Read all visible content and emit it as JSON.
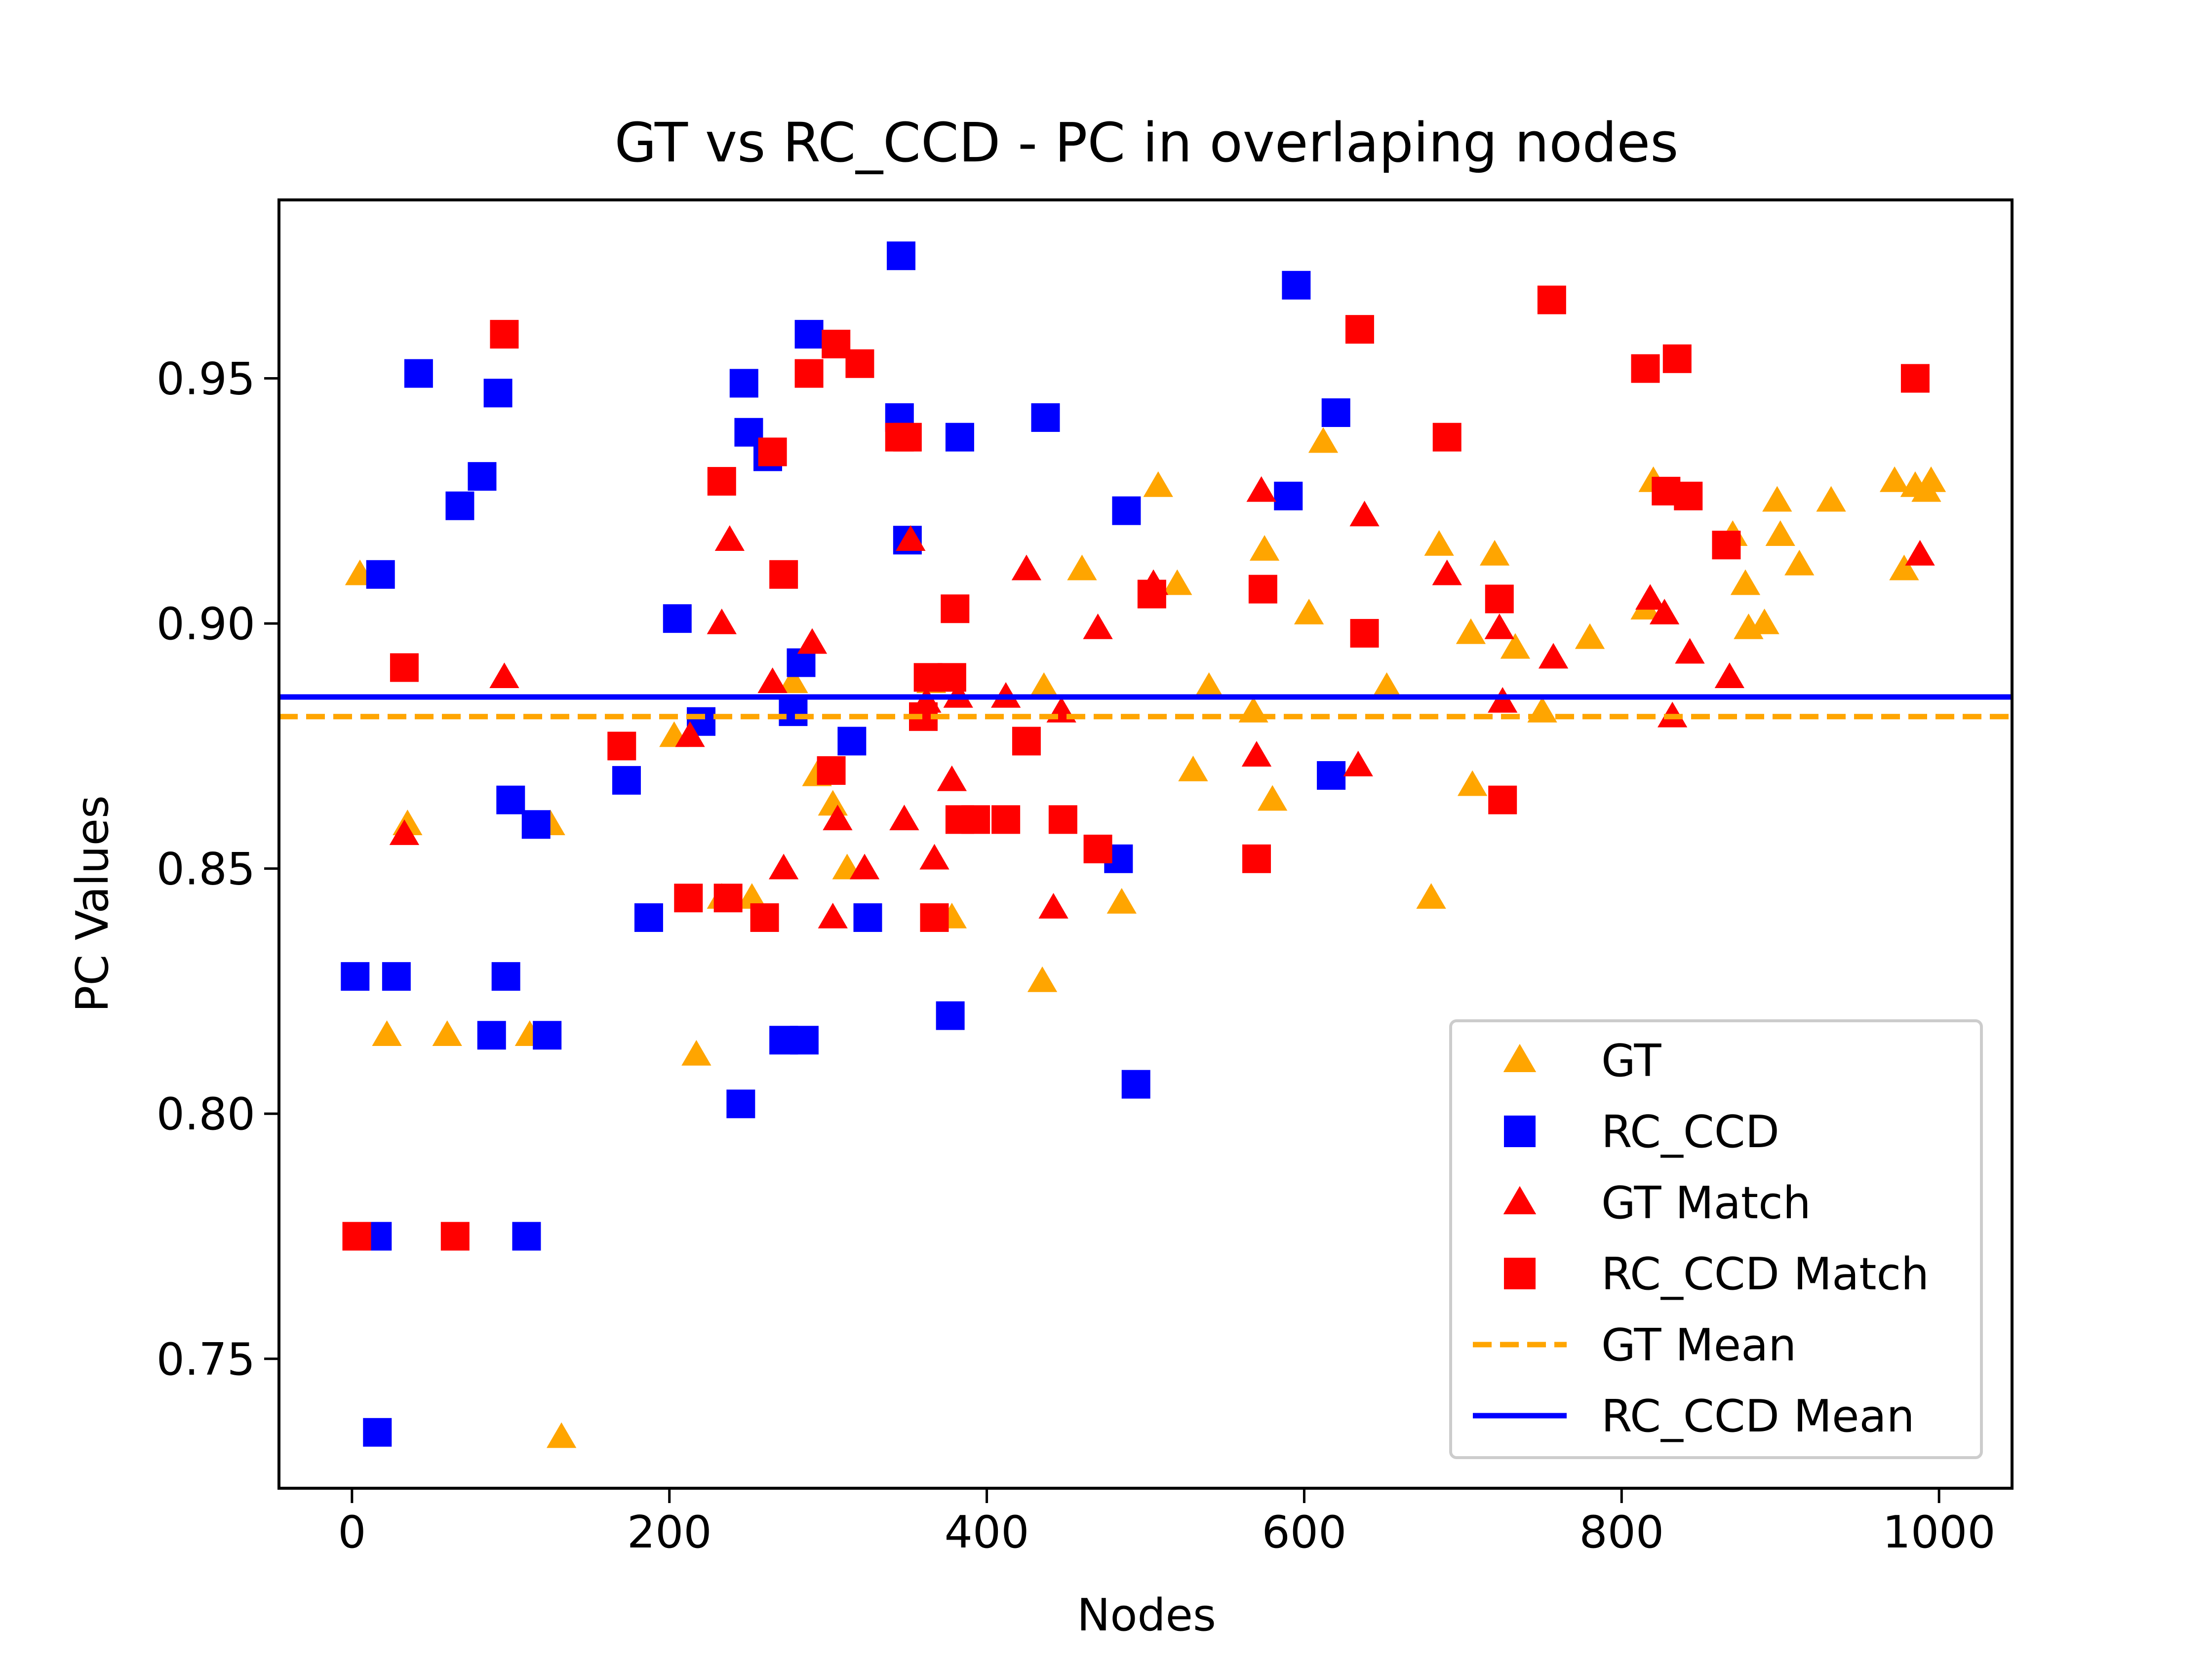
{
  "chart_data": {
    "type": "scatter",
    "title": "GT vs RC_CCD - PC in overlaping nodes",
    "xlabel": "Nodes",
    "ylabel": "PC Values",
    "xlim": [
      -46,
      1046
    ],
    "ylim": [
      0.7236,
      0.9864
    ],
    "xticks": [
      0,
      200,
      400,
      600,
      800,
      1000
    ],
    "xtick_labels": [
      "0",
      "200",
      "400",
      "600",
      "800",
      "1000"
    ],
    "yticks": [
      0.75,
      0.8,
      0.85,
      0.9,
      0.95
    ],
    "ytick_labels": [
      "0.75",
      "0.80",
      "0.85",
      "0.90",
      "0.95"
    ],
    "grid": false,
    "legend_position": "lower-right",
    "series": [
      {
        "name": "GT",
        "marker": "triangle",
        "color": "#ffa500",
        "points": [
          [
            5,
            0.91
          ],
          [
            22,
            0.816
          ],
          [
            35,
            0.859
          ],
          [
            60,
            0.816
          ],
          [
            112,
            0.816
          ],
          [
            125,
            0.859
          ],
          [
            132,
            0.734
          ],
          [
            203,
            0.877
          ],
          [
            217,
            0.812
          ],
          [
            233,
            0.844
          ],
          [
            252,
            0.844
          ],
          [
            278,
            0.888
          ],
          [
            293,
            0.869
          ],
          [
            303,
            0.863
          ],
          [
            312,
            0.85
          ],
          [
            352,
            0.917
          ],
          [
            365,
            0.888
          ],
          [
            378,
            0.84
          ],
          [
            435,
            0.827
          ],
          [
            436,
            0.887
          ],
          [
            460,
            0.911
          ],
          [
            485,
            0.843
          ],
          [
            508,
            0.928
          ],
          [
            520,
            0.908
          ],
          [
            530,
            0.87
          ],
          [
            540,
            0.887
          ],
          [
            568,
            0.882
          ],
          [
            575,
            0.915
          ],
          [
            580,
            0.864
          ],
          [
            603,
            0.902
          ],
          [
            612,
            0.937
          ],
          [
            652,
            0.887
          ],
          [
            680,
            0.844
          ],
          [
            685,
            0.916
          ],
          [
            705,
            0.898
          ],
          [
            706,
            0.867
          ],
          [
            720,
            0.914
          ],
          [
            733,
            0.895
          ],
          [
            750,
            0.882
          ],
          [
            780,
            0.897
          ],
          [
            815,
            0.903
          ],
          [
            820,
            0.929
          ],
          [
            870,
            0.918
          ],
          [
            878,
            0.908
          ],
          [
            880,
            0.899
          ],
          [
            890,
            0.9
          ],
          [
            898,
            0.925
          ],
          [
            900,
            0.918
          ],
          [
            912,
            0.912
          ],
          [
            932,
            0.925
          ],
          [
            972,
            0.929
          ],
          [
            978,
            0.911
          ],
          [
            985,
            0.928
          ],
          [
            992,
            0.927
          ],
          [
            995,
            0.929
          ]
        ]
      },
      {
        "name": "RC_CCD",
        "marker": "square",
        "color": "#0000ff",
        "points": [
          [
            2,
            0.828
          ],
          [
            16,
            0.775
          ],
          [
            16,
            0.735
          ],
          [
            18,
            0.91
          ],
          [
            28,
            0.828
          ],
          [
            42,
            0.951
          ],
          [
            68,
            0.924
          ],
          [
            82,
            0.93
          ],
          [
            88,
            0.816
          ],
          [
            92,
            0.947
          ],
          [
            97,
            0.828
          ],
          [
            100,
            0.864
          ],
          [
            110,
            0.775
          ],
          [
            116,
            0.859
          ],
          [
            123,
            0.816
          ],
          [
            173,
            0.868
          ],
          [
            187,
            0.84
          ],
          [
            205,
            0.901
          ],
          [
            220,
            0.88
          ],
          [
            245,
            0.802
          ],
          [
            247,
            0.949
          ],
          [
            250,
            0.939
          ],
          [
            262,
            0.934
          ],
          [
            272,
            0.815
          ],
          [
            278,
            0.882
          ],
          [
            283,
            0.892
          ],
          [
            285,
            0.815
          ],
          [
            288,
            0.959
          ],
          [
            315,
            0.876
          ],
          [
            325,
            0.84
          ],
          [
            345,
            0.942
          ],
          [
            346,
            0.975
          ],
          [
            350,
            0.917
          ],
          [
            377,
            0.82
          ],
          [
            383,
            0.938
          ],
          [
            437,
            0.942
          ],
          [
            483,
            0.852
          ],
          [
            488,
            0.923
          ],
          [
            494,
            0.806
          ],
          [
            590,
            0.926
          ],
          [
            595,
            0.969
          ],
          [
            617,
            0.869
          ],
          [
            620,
            0.943
          ]
        ]
      },
      {
        "name": "GT Match",
        "marker": "triangle",
        "color": "#ff0000",
        "points": [
          [
            33,
            0.857
          ],
          [
            96,
            0.889
          ],
          [
            213,
            0.877
          ],
          [
            233,
            0.9
          ],
          [
            238,
            0.917
          ],
          [
            265,
            0.888
          ],
          [
            272,
            0.85
          ],
          [
            290,
            0.896
          ],
          [
            303,
            0.84
          ],
          [
            306,
            0.86
          ],
          [
            323,
            0.85
          ],
          [
            348,
            0.86
          ],
          [
            352,
            0.917
          ],
          [
            362,
            0.884
          ],
          [
            367,
            0.852
          ],
          [
            378,
            0.868
          ],
          [
            382,
            0.885
          ],
          [
            412,
            0.885
          ],
          [
            425,
            0.911
          ],
          [
            442,
            0.842
          ],
          [
            447,
            0.882
          ],
          [
            470,
            0.899
          ],
          [
            505,
            0.908
          ],
          [
            570,
            0.873
          ],
          [
            573,
            0.927
          ],
          [
            634,
            0.871
          ],
          [
            638,
            0.922
          ],
          [
            690,
            0.91
          ],
          [
            723,
            0.899
          ],
          [
            725,
            0.884
          ],
          [
            757,
            0.893
          ],
          [
            818,
            0.905
          ],
          [
            827,
            0.902
          ],
          [
            832,
            0.881
          ],
          [
            843,
            0.894
          ],
          [
            868,
            0.889
          ],
          [
            988,
            0.914
          ]
        ]
      },
      {
        "name": "RC_CCD Match",
        "marker": "square",
        "color": "#ff0000",
        "points": [
          [
            3,
            0.775
          ],
          [
            33,
            0.891
          ],
          [
            65,
            0.775
          ],
          [
            96,
            0.959
          ],
          [
            170,
            0.875
          ],
          [
            212,
            0.844
          ],
          [
            233,
            0.929
          ],
          [
            237,
            0.844
          ],
          [
            260,
            0.84
          ],
          [
            265,
            0.935
          ],
          [
            272,
            0.91
          ],
          [
            288,
            0.951
          ],
          [
            302,
            0.87
          ],
          [
            305,
            0.957
          ],
          [
            320,
            0.953
          ],
          [
            345,
            0.938
          ],
          [
            350,
            0.938
          ],
          [
            360,
            0.881
          ],
          [
            363,
            0.889
          ],
          [
            367,
            0.84
          ],
          [
            378,
            0.889
          ],
          [
            380,
            0.903
          ],
          [
            383,
            0.86
          ],
          [
            393,
            0.86
          ],
          [
            412,
            0.86
          ],
          [
            425,
            0.876
          ],
          [
            448,
            0.86
          ],
          [
            470,
            0.854
          ],
          [
            504,
            0.906
          ],
          [
            570,
            0.852
          ],
          [
            574,
            0.907
          ],
          [
            635,
            0.96
          ],
          [
            638,
            0.898
          ],
          [
            690,
            0.938
          ],
          [
            723,
            0.905
          ],
          [
            725,
            0.864
          ],
          [
            756,
            0.966
          ],
          [
            815,
            0.952
          ],
          [
            828,
            0.927
          ],
          [
            835,
            0.954
          ],
          [
            842,
            0.926
          ],
          [
            866,
            0.916
          ],
          [
            985,
            0.95
          ]
        ]
      }
    ],
    "reference_lines": [
      {
        "name": "GT Mean",
        "y": 0.881,
        "color": "#ffa500",
        "style": "dashed"
      },
      {
        "name": "RC_CCD Mean",
        "y": 0.885,
        "color": "#0000ff",
        "style": "solid"
      }
    ]
  }
}
